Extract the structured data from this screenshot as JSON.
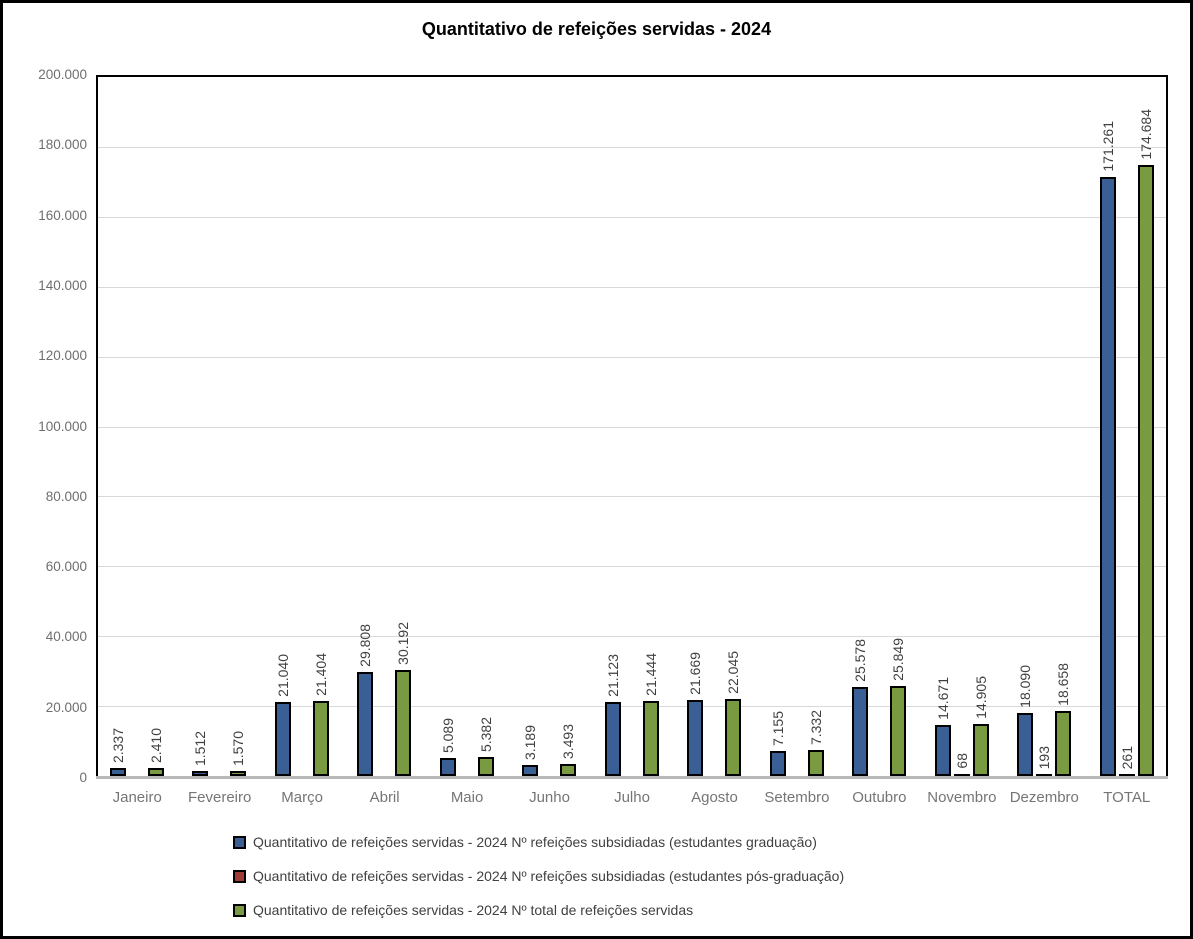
{
  "chart_data": {
    "type": "bar",
    "title": "Quantitativo de refeições servidas - 2024",
    "categories": [
      "Janeiro",
      "Fevereiro",
      "Março",
      "Abril",
      "Maio",
      "Junho",
      "Julho",
      "Agosto",
      "Setembro",
      "Outubro",
      "Novembro",
      "Dezembro",
      "TOTAL"
    ],
    "series": [
      {
        "name": "Quantitativo de refeições servidas - 2024 Nº refeições subsidiadas (estudantes graduação)",
        "color": "#3A5F94",
        "values": [
          2337,
          1512,
          21040,
          29808,
          5089,
          3189,
          21123,
          21669,
          7155,
          25578,
          14671,
          18090,
          171261
        ],
        "labels": [
          "2.337",
          "1.512",
          "21.040",
          "29.808",
          "5.089",
          "3.189",
          "21.123",
          "21.669",
          "7.155",
          "25.578",
          "14.671",
          "18.090",
          "171.261"
        ]
      },
      {
        "name": "Quantitativo de refeições servidas - 2024 Nº refeições subsidiadas (estudantes pós-graduação)",
        "color": "#9E3B38",
        "values": [
          null,
          null,
          null,
          null,
          null,
          null,
          null,
          null,
          null,
          null,
          68,
          193,
          261
        ],
        "labels": [
          "",
          "",
          "",
          "",
          "",
          "",
          "",
          "",
          "",
          "",
          "68",
          "193",
          "261"
        ]
      },
      {
        "name": "Quantitativo de refeições servidas - 2024 Nº total de refeições servidas",
        "color": "#7A9A42",
        "values": [
          2410,
          1570,
          21404,
          30192,
          5382,
          3493,
          21444,
          22045,
          7332,
          25849,
          14905,
          18658,
          174684
        ],
        "labels": [
          "2.410",
          "1.570",
          "21.404",
          "30.192",
          "5.382",
          "3.493",
          "21.444",
          "22.045",
          "7.332",
          "25.849",
          "14.905",
          "18.658",
          "174.684"
        ]
      }
    ],
    "ylim": [
      0,
      200000
    ],
    "ytick_step": 20000,
    "ytick_labels": [
      "0",
      "20.000",
      "40.000",
      "60.000",
      "80.000",
      "100.000",
      "120.000",
      "140.000",
      "160.000",
      "180.000",
      "200.000"
    ],
    "grid": true,
    "gridline_color": "#d9d9d9",
    "value_label_rotation": 90,
    "legend_position": "bottom"
  }
}
